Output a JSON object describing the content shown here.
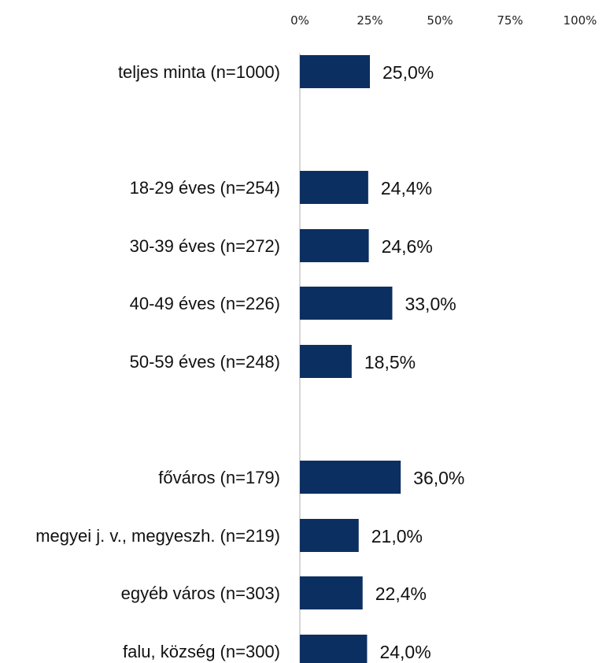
{
  "chart_data": {
    "type": "bar",
    "orientation": "horizontal",
    "x_ticks": [
      "0%",
      "25%",
      "50%",
      "75%",
      "100%"
    ],
    "xlim": [
      0,
      100
    ],
    "grid": false,
    "bar_color": "#0c2f61",
    "axis_color": "#c8c8c8",
    "categories": [
      "teljes minta (n=1000)",
      "18-29 éves (n=254)",
      "30-39 éves (n=272)",
      "40-49 éves (n=226)",
      "50-59 éves (n=248)",
      "főváros (n=179)",
      "megyei j. v., megyeszh. (n=219)",
      "egyéb város (n=303)",
      "falu, község (n=300)"
    ],
    "values": [
      25.0,
      24.4,
      24.6,
      33.0,
      18.5,
      36.0,
      21.0,
      22.4,
      24.0
    ],
    "value_labels": [
      "25,0%",
      "24,4%",
      "24,6%",
      "33,0%",
      "18,5%",
      "36,0%",
      "21,0%",
      "22,4%",
      "24,0%"
    ]
  }
}
